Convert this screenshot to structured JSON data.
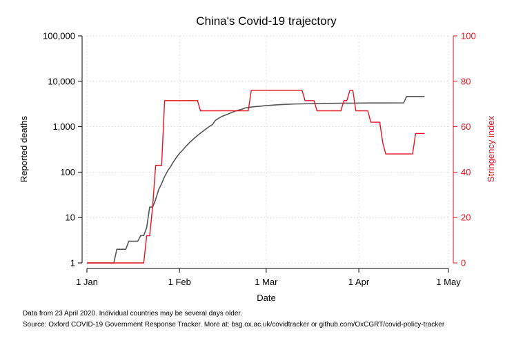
{
  "colors": {
    "deaths": "#555555",
    "stringency": "#e8111c",
    "grid": "#cccccc",
    "axis": "#000000",
    "right_axis": "#e8111c"
  },
  "footnotes": {
    "line1": "Data from 23 April 2020. Individual countries may be several days older.",
    "line2": "Source: Oxford COVID-19 Government Response Tracker. More at: bsg.ox.ac.uk/covidtracker or github.com/OxCGRT/covid-policy-tracker"
  },
  "chart_data": {
    "type": "line",
    "title": "China's Covid-19 trajectory",
    "xlabel": "Date",
    "ylabel": "Reported deaths",
    "y2label": "Stringency index",
    "x_ticks": [
      {
        "date": "2020-01-01",
        "label": "1 Jan"
      },
      {
        "date": "2020-02-01",
        "label": "1 Feb"
      },
      {
        "date": "2020-03-01",
        "label": "1 Mar"
      },
      {
        "date": "2020-04-01",
        "label": "1 Apr"
      },
      {
        "date": "2020-05-01",
        "label": "1 May"
      }
    ],
    "xlim": [
      "2020-01-01",
      "2020-05-01"
    ],
    "y_scale": "log",
    "ylim": [
      1,
      100000
    ],
    "y_ticks": [
      {
        "value": 1,
        "label": "1"
      },
      {
        "value": 10,
        "label": "10"
      },
      {
        "value": 100,
        "label": "100"
      },
      {
        "value": 1000,
        "label": "1,000"
      },
      {
        "value": 10000,
        "label": "10,000"
      },
      {
        "value": 100000,
        "label": "100,000"
      }
    ],
    "y2lim": [
      0,
      100
    ],
    "y2_ticks": [
      {
        "value": 0,
        "label": "0"
      },
      {
        "value": 20,
        "label": "20"
      },
      {
        "value": 40,
        "label": "40"
      },
      {
        "value": 60,
        "label": "60"
      },
      {
        "value": 80,
        "label": "80"
      },
      {
        "value": 100,
        "label": "100"
      }
    ],
    "grid": true,
    "series": [
      {
        "axis": "left",
        "points": [
          [
            "2020-01-01",
            1
          ],
          [
            "2020-01-10",
            1
          ],
          [
            "2020-01-11",
            2
          ],
          [
            "2020-01-13",
            2
          ],
          [
            "2020-01-14",
            2
          ],
          [
            "2020-01-15",
            3
          ],
          [
            "2020-01-17",
            3
          ],
          [
            "2020-01-18",
            3
          ],
          [
            "2020-01-19",
            4
          ],
          [
            "2020-01-20",
            4
          ],
          [
            "2020-01-21",
            6
          ],
          [
            "2020-01-22",
            17
          ],
          [
            "2020-01-23",
            17
          ],
          [
            "2020-01-24",
            25
          ],
          [
            "2020-01-25",
            41
          ],
          [
            "2020-01-26",
            56
          ],
          [
            "2020-01-27",
            80
          ],
          [
            "2020-01-28",
            106
          ],
          [
            "2020-01-29",
            132
          ],
          [
            "2020-01-30",
            170
          ],
          [
            "2020-01-31",
            213
          ],
          [
            "2020-02-01",
            259
          ],
          [
            "2020-02-02",
            304
          ],
          [
            "2020-02-03",
            361
          ],
          [
            "2020-02-04",
            425
          ],
          [
            "2020-02-05",
            490
          ],
          [
            "2020-02-06",
            563
          ],
          [
            "2020-02-07",
            636
          ],
          [
            "2020-02-08",
            722
          ],
          [
            "2020-02-09",
            811
          ],
          [
            "2020-02-10",
            908
          ],
          [
            "2020-02-11",
            1016
          ],
          [
            "2020-02-12",
            1113
          ],
          [
            "2020-02-13",
            1380
          ],
          [
            "2020-02-14",
            1523
          ],
          [
            "2020-02-15",
            1665
          ],
          [
            "2020-02-16",
            1770
          ],
          [
            "2020-02-17",
            1868
          ],
          [
            "2020-02-18",
            2004
          ],
          [
            "2020-02-19",
            2118
          ],
          [
            "2020-02-20",
            2236
          ],
          [
            "2020-02-21",
            2345
          ],
          [
            "2020-02-22",
            2442
          ],
          [
            "2020-02-23",
            2592
          ],
          [
            "2020-02-25",
            2715
          ],
          [
            "2020-02-28",
            2835
          ],
          [
            "2020-03-01",
            2912
          ],
          [
            "2020-03-04",
            3012
          ],
          [
            "2020-03-07",
            3097
          ],
          [
            "2020-03-10",
            3158
          ],
          [
            "2020-03-14",
            3199
          ],
          [
            "2020-03-18",
            3237
          ],
          [
            "2020-03-22",
            3261
          ],
          [
            "2020-03-26",
            3287
          ],
          [
            "2020-03-31",
            3305
          ],
          [
            "2020-04-05",
            3330
          ],
          [
            "2020-04-10",
            3339
          ],
          [
            "2020-04-15",
            3341
          ],
          [
            "2020-04-16",
            3342
          ],
          [
            "2020-04-17",
            4632
          ],
          [
            "2020-04-23",
            4632
          ]
        ]
      },
      {
        "axis": "right",
        "points": [
          [
            "2020-01-01",
            0
          ],
          [
            "2020-01-20",
            0
          ],
          [
            "2020-01-21",
            12
          ],
          [
            "2020-01-22",
            12
          ],
          [
            "2020-01-23",
            25
          ],
          [
            "2020-01-24",
            43
          ],
          [
            "2020-01-26",
            43
          ],
          [
            "2020-01-27",
            71.5
          ],
          [
            "2020-02-07",
            71.5
          ],
          [
            "2020-02-08",
            67
          ],
          [
            "2020-02-24",
            67
          ],
          [
            "2020-02-25",
            76
          ],
          [
            "2020-03-13",
            76
          ],
          [
            "2020-03-14",
            71.5
          ],
          [
            "2020-03-17",
            71.5
          ],
          [
            "2020-03-18",
            67
          ],
          [
            "2020-03-26",
            67
          ],
          [
            "2020-03-27",
            71.5
          ],
          [
            "2020-03-28",
            71.5
          ],
          [
            "2020-03-29",
            76
          ],
          [
            "2020-03-30",
            76
          ],
          [
            "2020-03-31",
            67
          ],
          [
            "2020-04-01",
            67
          ],
          [
            "2020-04-02",
            67
          ],
          [
            "2020-04-03",
            67
          ],
          [
            "2020-04-04",
            67
          ],
          [
            "2020-04-05",
            62
          ],
          [
            "2020-04-08",
            62
          ],
          [
            "2020-04-09",
            53
          ],
          [
            "2020-04-10",
            48
          ],
          [
            "2020-04-19",
            48
          ],
          [
            "2020-04-20",
            57
          ],
          [
            "2020-04-23",
            57
          ]
        ]
      }
    ]
  }
}
